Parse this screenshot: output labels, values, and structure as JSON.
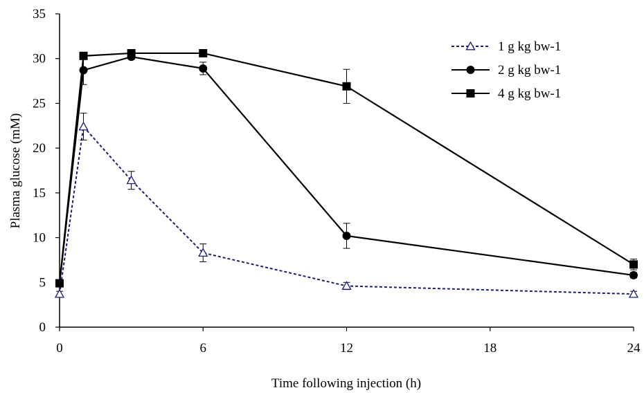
{
  "chart_data": {
    "type": "line",
    "xlabel": "Time following injection (h)",
    "ylabel": "Plasma glucose (mM)",
    "xlim": [
      0,
      24
    ],
    "ylim": [
      0,
      35
    ],
    "x_ticks": [
      0,
      6,
      12,
      18,
      24
    ],
    "y_ticks": [
      0,
      5,
      10,
      15,
      20,
      25,
      30,
      35
    ],
    "grid": false,
    "legend_position": "top-right",
    "series": [
      {
        "name": "1 g kg bw-1",
        "marker": "open-triangle",
        "line_style": "dashed",
        "color": "#1a1a7a",
        "x": [
          0,
          1,
          3,
          6,
          12,
          24
        ],
        "y": [
          3.7,
          22.4,
          16.4,
          8.3,
          4.6,
          3.7
        ],
        "error": [
          0.3,
          1.5,
          1.0,
          1.0,
          0.4,
          0.3
        ]
      },
      {
        "name": "2 g kg bw-1",
        "marker": "filled-circle",
        "line_style": "solid",
        "color": "#000000",
        "x": [
          0,
          1,
          3,
          6,
          12,
          24
        ],
        "y": [
          4.9,
          28.7,
          30.2,
          28.9,
          10.2,
          5.8
        ],
        "error": [
          0.2,
          1.6,
          0.3,
          0.7,
          1.4,
          0.3
        ]
      },
      {
        "name": "4 g kg bw-1",
        "marker": "filled-square",
        "line_style": "solid",
        "color": "#000000",
        "x": [
          0,
          1,
          3,
          6,
          12,
          24
        ],
        "y": [
          4.9,
          30.3,
          30.6,
          30.6,
          26.9,
          7.0
        ],
        "error": [
          0.2,
          0.2,
          0.2,
          0.2,
          1.9,
          0.6
        ]
      }
    ]
  }
}
